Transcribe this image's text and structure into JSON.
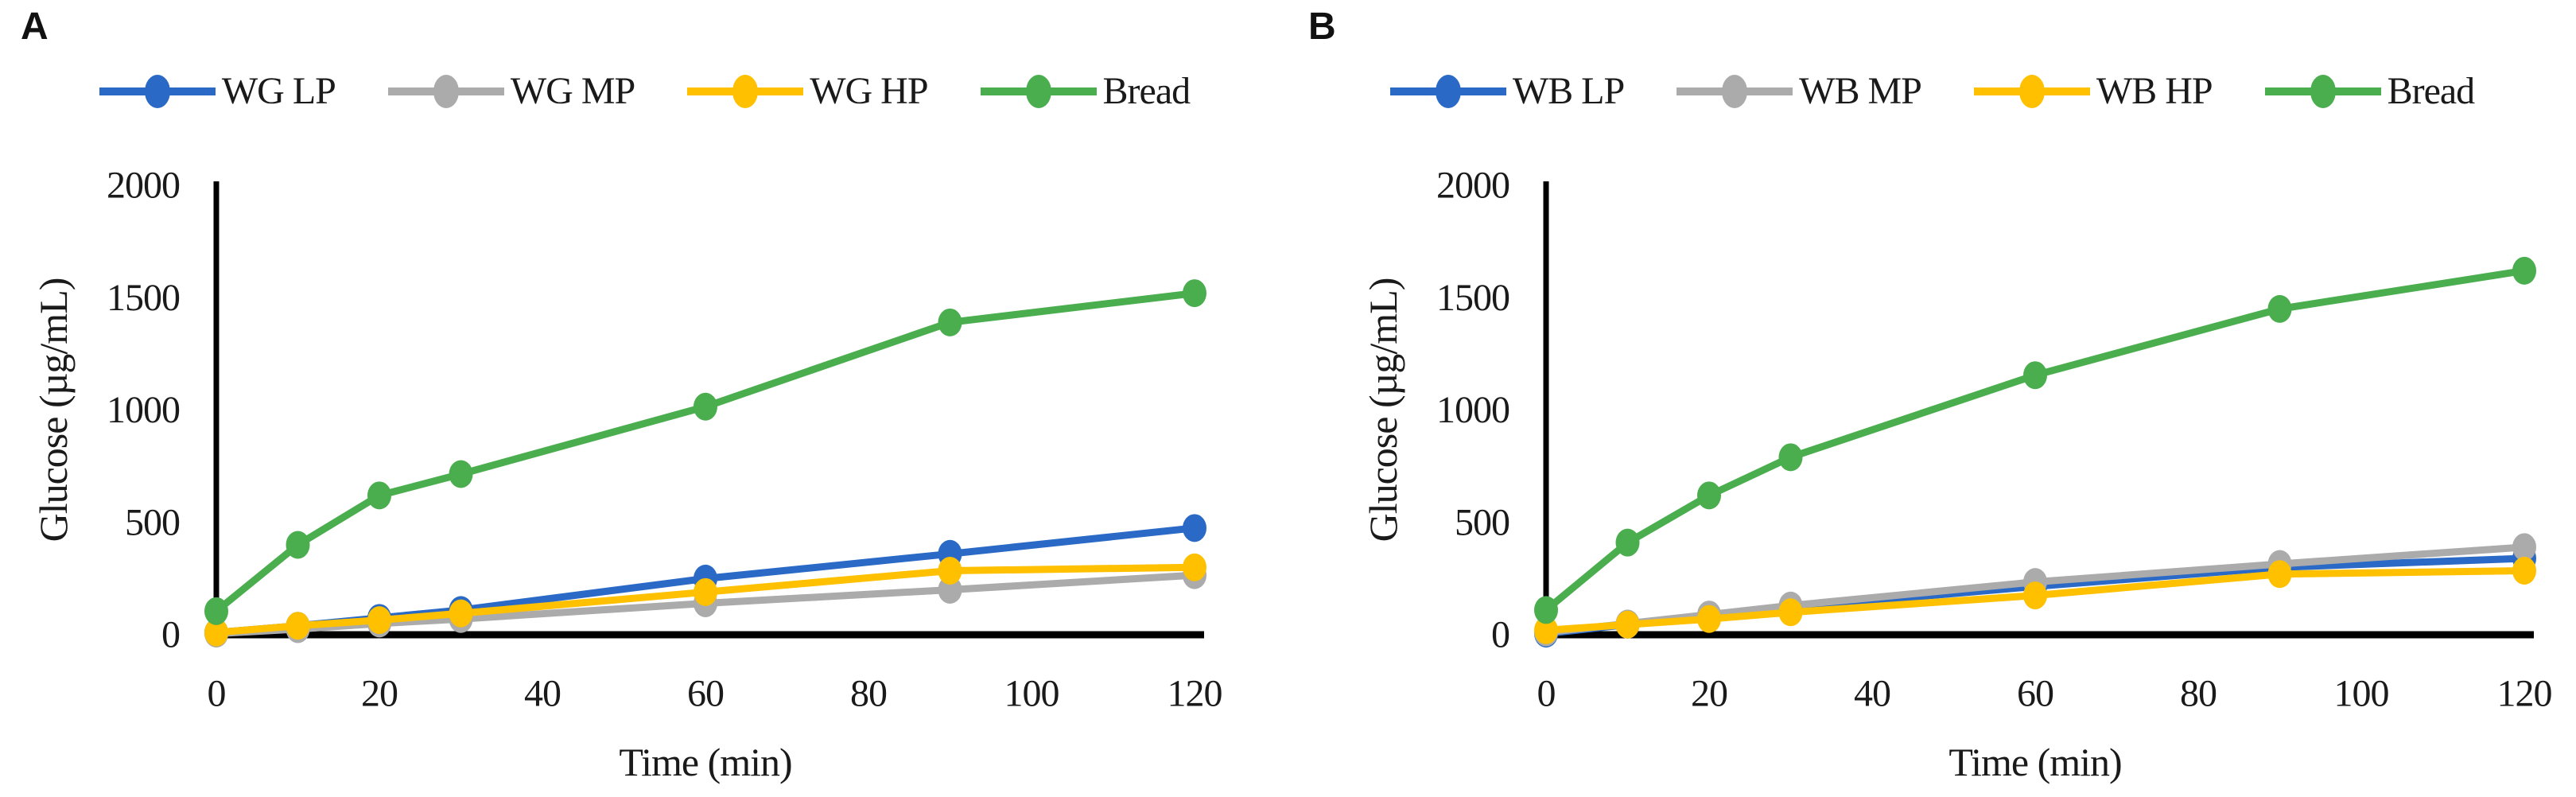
{
  "figure": {
    "background": "#ffffff",
    "text_color": "#1a1a1a",
    "axis_color": "#000000"
  },
  "chart_data": [
    {
      "type": "line",
      "panel": "A",
      "xlabel": "Time (min)",
      "ylabel": "Glucose (µg/mL)",
      "x": [
        0,
        10,
        20,
        30,
        60,
        90,
        120
      ],
      "xticks": [
        0,
        20,
        40,
        60,
        80,
        100,
        120
      ],
      "yticks": [
        0,
        500,
        1000,
        1500,
        2000
      ],
      "xlim": [
        0,
        120
      ],
      "ylim": [
        0,
        2000
      ],
      "grid": false,
      "legend_position": "top",
      "series": [
        {
          "name": "WG LP",
          "color": "#2A6AC6",
          "values": [
            10,
            40,
            75,
            110,
            250,
            360,
            475
          ]
        },
        {
          "name": "WG MP",
          "color": "#ABABAB",
          "values": [
            5,
            25,
            50,
            70,
            140,
            200,
            265
          ]
        },
        {
          "name": "WG HP",
          "color": "#FFC000",
          "values": [
            10,
            40,
            65,
            95,
            190,
            285,
            300
          ]
        },
        {
          "name": "Bread",
          "color": "#4AAE4E",
          "values": [
            105,
            400,
            620,
            715,
            1015,
            1390,
            1520
          ]
        }
      ]
    },
    {
      "type": "line",
      "panel": "B",
      "xlabel": "Time (min)",
      "ylabel": "Glucose (µg/mL)",
      "x": [
        0,
        10,
        20,
        30,
        60,
        90,
        120
      ],
      "xticks": [
        0,
        20,
        40,
        60,
        80,
        100,
        120
      ],
      "yticks": [
        0,
        500,
        1000,
        1500,
        2000
      ],
      "xlim": [
        0,
        120
      ],
      "ylim": [
        0,
        2000
      ],
      "grid": false,
      "legend_position": "top",
      "series": [
        {
          "name": "WB LP",
          "color": "#2A6AC6",
          "values": [
            5,
            45,
            85,
            120,
            215,
            300,
            340
          ]
        },
        {
          "name": "WB MP",
          "color": "#ABABAB",
          "values": [
            10,
            50,
            90,
            130,
            235,
            315,
            390
          ]
        },
        {
          "name": "WB HP",
          "color": "#FFC000",
          "values": [
            20,
            45,
            70,
            100,
            175,
            270,
            285
          ]
        },
        {
          "name": "Bread",
          "color": "#4AAE4E",
          "values": [
            110,
            410,
            620,
            790,
            1155,
            1450,
            1620
          ]
        }
      ]
    }
  ]
}
